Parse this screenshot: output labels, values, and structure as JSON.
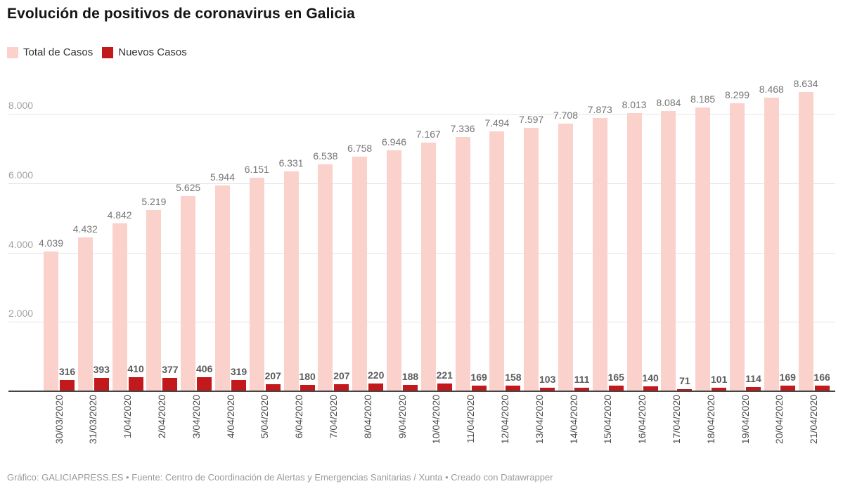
{
  "header": {
    "title": "Evolución de positivos de coronavirus en Galicia"
  },
  "legend": [
    {
      "label": "Total de Casos",
      "color": "#fbd1cb",
      "name": "total-de-casos"
    },
    {
      "label": "Nuevos Casos",
      "color": "#c2191d",
      "name": "nuevos-casos"
    }
  ],
  "chart_data": {
    "type": "bar",
    "title": "Evolución de positivos de coronavirus en Galicia",
    "xlabel": "",
    "ylabel": "",
    "ylim": [
      0,
      9000
    ],
    "grid": true,
    "legend_position": "top-left",
    "categories": [
      "30/03/2020",
      "31/03/2020",
      "1/04/2020",
      "2/04/2020",
      "3/04/2020",
      "4/04/2020",
      "5/04/2020",
      "6/04/2020",
      "7/04/2020",
      "8/04/2020",
      "9/04/2020",
      "10/04/2020",
      "11/04/2020",
      "12/04/2020",
      "13/04/2020",
      "14/04/2020",
      "15/04/2020",
      "16/04/2020",
      "17/04/2020",
      "18/04/2020",
      "19/04/2020",
      "20/04/2020",
      "21/04/2020"
    ],
    "series": [
      {
        "name": "Total de Casos",
        "color": "#fbd1cb",
        "values": [
          4039,
          4432,
          4842,
          5219,
          5625,
          5944,
          6151,
          6331,
          6538,
          6758,
          6946,
          7167,
          7336,
          7494,
          7597,
          7708,
          7873,
          8013,
          8084,
          8185,
          8299,
          8468,
          8634
        ],
        "data_labels": [
          "4.039",
          "4.432",
          "4.842",
          "5.219",
          "5.625",
          "5.944",
          "6.151",
          "6.331",
          "6.538",
          "6.758",
          "6.946",
          "7.167",
          "7.336",
          "7.494",
          "7.597",
          "7.708",
          "7.873",
          "8.013",
          "8.084",
          "8.185",
          "8.299",
          "8.468",
          "8.634"
        ]
      },
      {
        "name": "Nuevos Casos",
        "color": "#c2191d",
        "values": [
          316,
          393,
          410,
          377,
          406,
          319,
          207,
          180,
          207,
          220,
          188,
          221,
          169,
          158,
          103,
          111,
          165,
          140,
          71,
          101,
          114,
          169,
          166
        ],
        "data_labels": [
          "316",
          "393",
          "410",
          "377",
          "406",
          "319",
          "207",
          "180",
          "207",
          "220",
          "188",
          "221",
          "169",
          "158",
          "103",
          "111",
          "165",
          "140",
          "71",
          "101",
          "114",
          "169",
          "166"
        ]
      }
    ],
    "yticks": [
      {
        "value": 2000,
        "label": "2.000"
      },
      {
        "value": 4000,
        "label": "4.000"
      },
      {
        "value": 6000,
        "label": "6.000"
      },
      {
        "value": 8000,
        "label": "8.000"
      }
    ]
  },
  "footer": {
    "credit": "Gráfico: GALICIAPRESS.ES • Fuente: Centro de Coordinación de Alertas y Emergencias Sanitarias / Xunta • Creado con Datawrapper"
  }
}
